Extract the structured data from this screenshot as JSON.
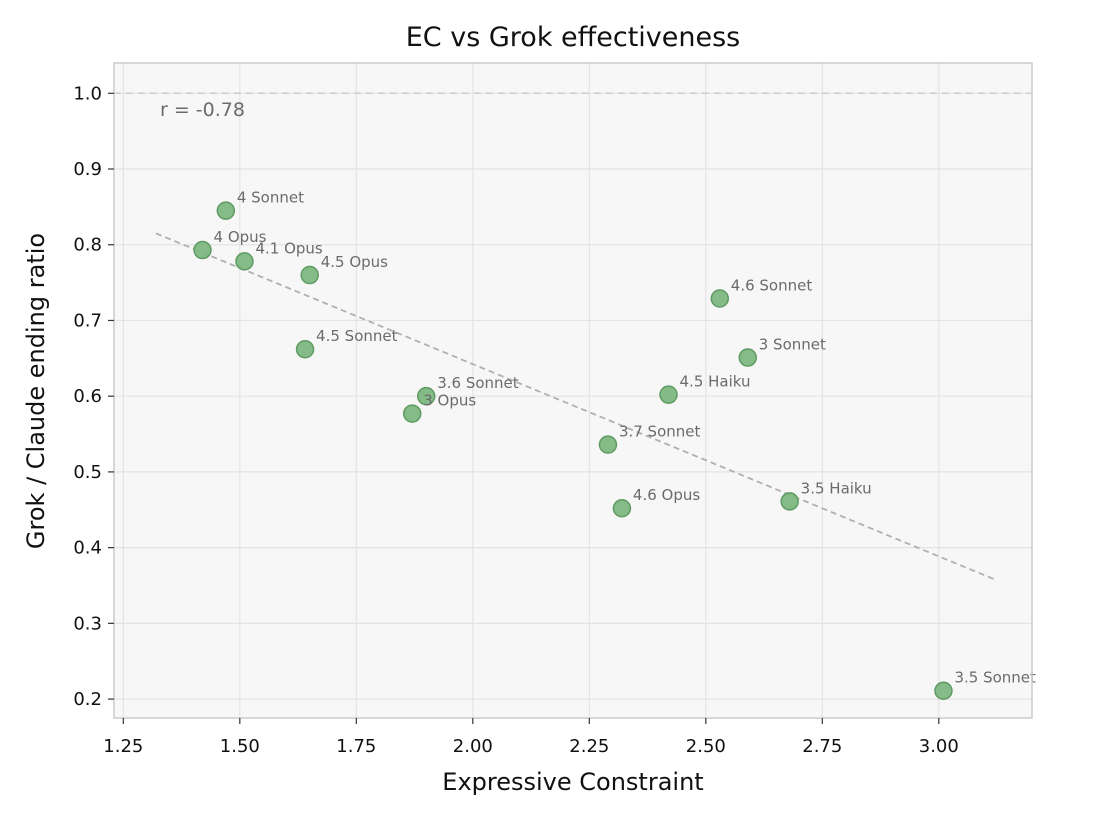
{
  "chart_data": {
    "type": "scatter",
    "title": "EC vs Grok effectiveness",
    "xlabel": "Expressive Constraint",
    "ylabel": "Grok / Claude ending ratio",
    "xlim": [
      1.23,
      3.2
    ],
    "ylim": [
      0.175,
      1.04
    ],
    "xticks": [
      "1.25",
      "1.50",
      "1.75",
      "2.00",
      "2.25",
      "2.50",
      "2.75",
      "3.00"
    ],
    "yticks": [
      "0.2",
      "0.3",
      "0.4",
      "0.5",
      "0.6",
      "0.7",
      "0.8",
      "0.9",
      "1.0"
    ],
    "grid": true,
    "annotation": "r = -0.78",
    "reference_line": {
      "y": 1.0,
      "style": "dashed"
    },
    "trendline": {
      "x": [
        1.32,
        3.12
      ],
      "y": [
        0.815,
        0.358
      ],
      "style": "dashed"
    },
    "points": [
      {
        "label": "4 Sonnet",
        "x": 1.47,
        "y": 0.845
      },
      {
        "label": "4 Opus",
        "x": 1.42,
        "y": 0.793
      },
      {
        "label": "4.1 Opus",
        "x": 1.51,
        "y": 0.778
      },
      {
        "label": "4.5 Opus",
        "x": 1.65,
        "y": 0.76
      },
      {
        "label": "4.5 Sonnet",
        "x": 1.64,
        "y": 0.662
      },
      {
        "label": "3.6 Sonnet",
        "x": 1.9,
        "y": 0.6
      },
      {
        "label": "3 Opus",
        "x": 1.87,
        "y": 0.577
      },
      {
        "label": "3.7 Sonnet",
        "x": 2.29,
        "y": 0.536
      },
      {
        "label": "4.6 Opus",
        "x": 2.32,
        "y": 0.452
      },
      {
        "label": "4.5 Haiku",
        "x": 2.42,
        "y": 0.602
      },
      {
        "label": "4.6 Sonnet",
        "x": 2.53,
        "y": 0.729
      },
      {
        "label": "3 Sonnet",
        "x": 2.59,
        "y": 0.651
      },
      {
        "label": "3.5 Haiku",
        "x": 2.68,
        "y": 0.461
      },
      {
        "label": "3.5 Sonnet",
        "x": 3.01,
        "y": 0.211
      }
    ],
    "colors": {
      "point_fill": "#7ab57d",
      "point_stroke": "#5f9b62",
      "plot_background": "#f7f7f7",
      "grid": "#e3e3e3",
      "trendline": "#b0b0b0",
      "reference_line": "#cccccc",
      "point_label": "#6b6b6b",
      "frame": "#cccccc"
    }
  }
}
